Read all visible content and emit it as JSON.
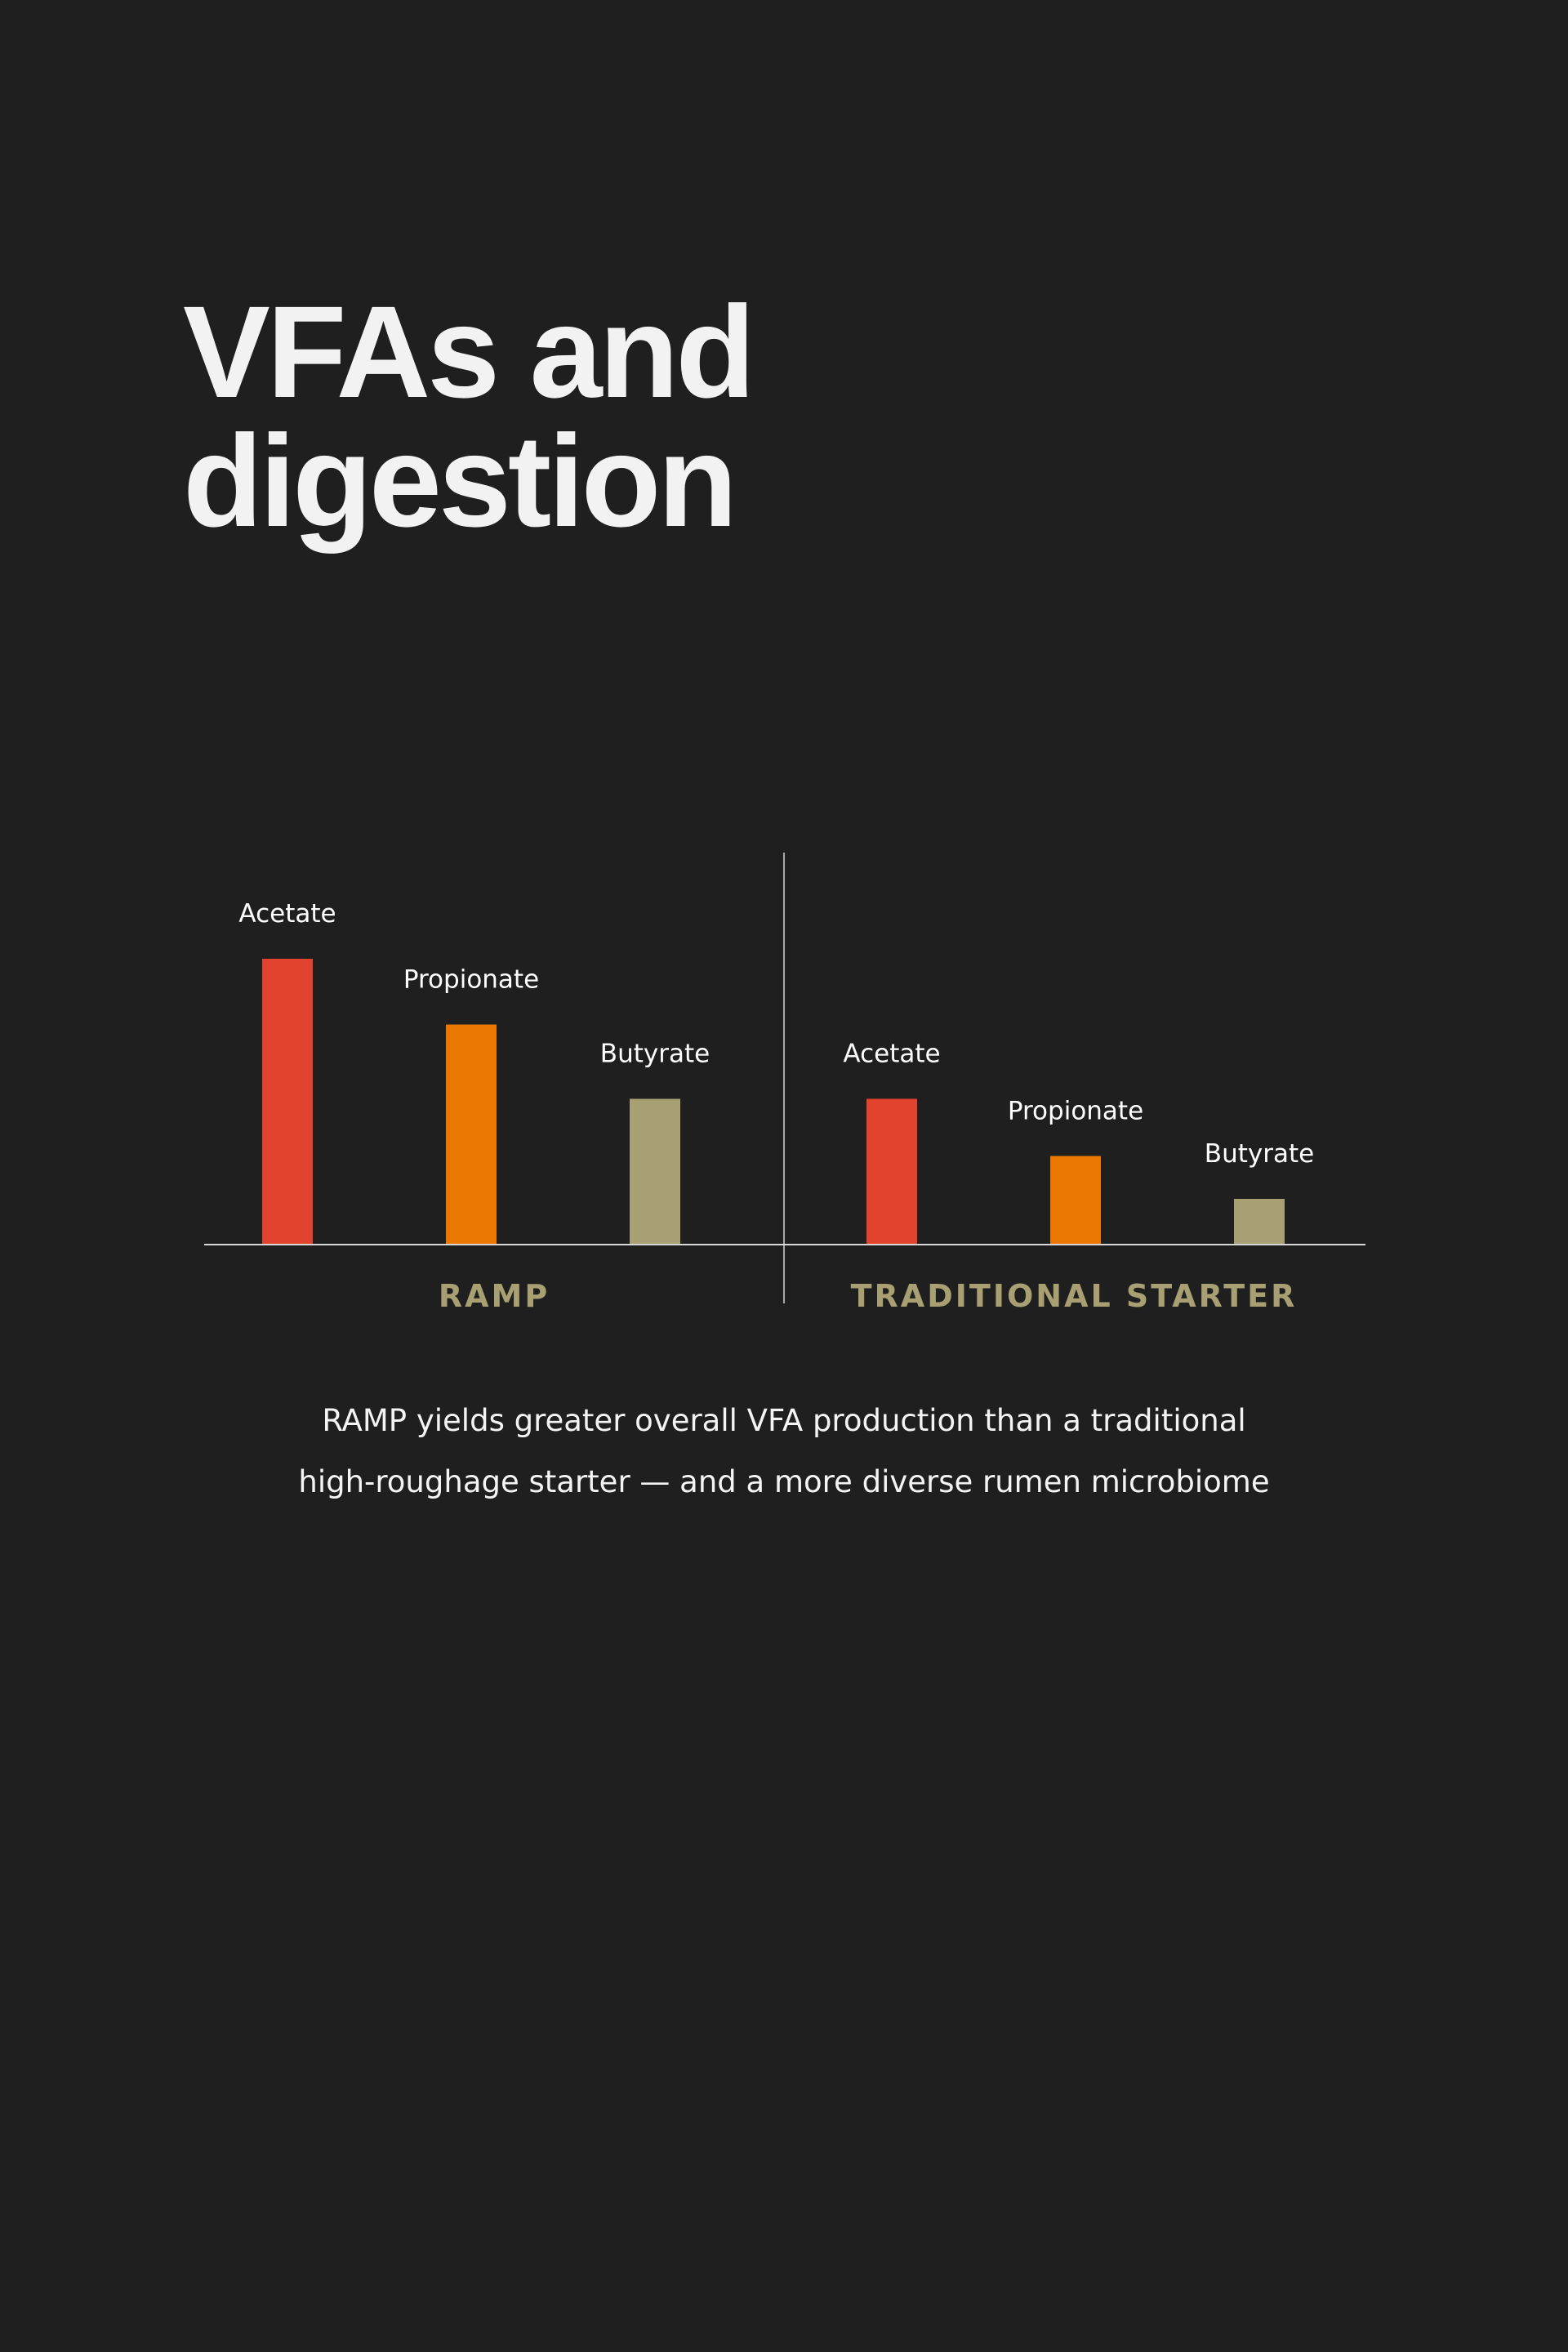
{
  "title": {
    "line1": "VFAs and",
    "line2": "digestion"
  },
  "caption": {
    "line1": "RAMP yields greater overall VFA production than a traditional",
    "line2": "high-roughage starter — and a more diverse rumen microbiome"
  },
  "colors": {
    "background": "#1f1f1f",
    "acetate": "#e2432e",
    "propionate": "#ea7700",
    "butyrate": "#a89f72",
    "group_label": "#a89f72",
    "text": "#ffffff",
    "axis": "#d8d8d8"
  },
  "chart_data": {
    "type": "bar",
    "title": "",
    "xlabel": "",
    "ylabel": "",
    "ylim": [
      0,
      100
    ],
    "grid": false,
    "legend": "none",
    "categories": [
      "Acetate",
      "Propionate",
      "Butyrate"
    ],
    "groups": [
      {
        "label": "RAMP",
        "values": [
          100,
          77,
          51
        ]
      },
      {
        "label": "TRADITIONAL STARTER",
        "values": [
          51,
          31,
          16
        ]
      }
    ]
  }
}
